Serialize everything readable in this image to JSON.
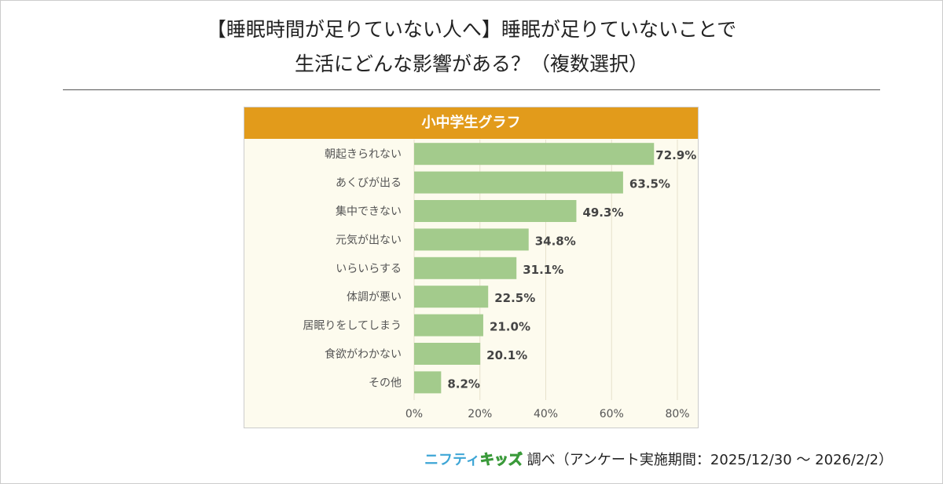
{
  "title_line1": "【睡眠時間が足りていない人へ】睡眠が足りていないことで",
  "title_line2": "生活にどんな影響がある？（複数選択）",
  "panel_title": "小中学生グラフ",
  "footer": {
    "logo_part1": "ニフティ",
    "logo_part2": "キッズ",
    "text": "調べ（アンケート実施期間：2025/12/30 ～ 2026/2/2）"
  },
  "colors": {
    "bar": "#a3cb8c",
    "header": "#e29b1b"
  },
  "chart_data": {
    "type": "bar",
    "orientation": "horizontal",
    "categories": [
      "朝起きられない",
      "あくびが出る",
      "集中できない",
      "元気が出ない",
      "いらいらする",
      "体調が悪い",
      "居眠りをしてしまう",
      "食欲がわかない",
      "その他"
    ],
    "values": [
      72.9,
      63.5,
      49.3,
      34.8,
      31.1,
      22.5,
      21.0,
      20.1,
      8.2
    ],
    "value_labels": [
      "72.9%",
      "63.5%",
      "49.3%",
      "34.8%",
      "31.1%",
      "22.5%",
      "21.0%",
      "20.1%",
      "8.2%"
    ],
    "xlim": [
      0,
      80
    ],
    "xticks": [
      "0%",
      "20%",
      "40%",
      "60%",
      "80%"
    ],
    "grid": true
  }
}
